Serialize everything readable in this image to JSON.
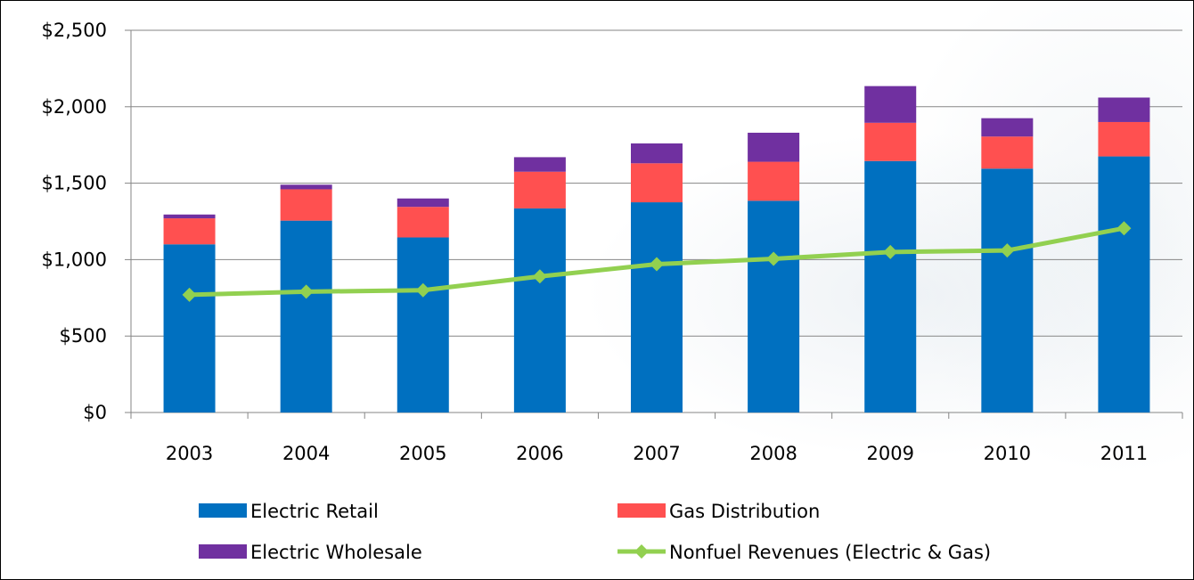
{
  "chart_data": {
    "type": "bar",
    "stacked": true,
    "categories": [
      "2003",
      "2004",
      "2005",
      "2006",
      "2007",
      "2008",
      "2009",
      "2010",
      "2011"
    ],
    "ylim": [
      0,
      2500
    ],
    "yticks": [
      0,
      500,
      1000,
      1500,
      2000,
      2500
    ],
    "ytick_labels": [
      "$0",
      "$500",
      "$1,000",
      "$1,500",
      "$2,000",
      "$2,500"
    ],
    "grid": true,
    "legend_position": "bottom",
    "title": "",
    "xlabel": "",
    "ylabel": "",
    "series": [
      {
        "name": "Electric Retail",
        "type": "bar",
        "color": "#0070C0",
        "values": [
          1100,
          1255,
          1145,
          1335,
          1375,
          1385,
          1645,
          1595,
          1675
        ]
      },
      {
        "name": "Gas Distribution",
        "type": "bar",
        "color": "#FF5050",
        "values": [
          170,
          205,
          200,
          240,
          255,
          255,
          250,
          210,
          225
        ]
      },
      {
        "name": "Electric Wholesale",
        "type": "bar",
        "color": "#7030A0",
        "values": [
          25,
          30,
          55,
          95,
          130,
          190,
          240,
          120,
          160
        ]
      },
      {
        "name": "Nonfuel Revenues (Electric & Gas)",
        "type": "line",
        "color": "#92D050",
        "values": [
          770,
          790,
          800,
          890,
          970,
          1005,
          1050,
          1060,
          1205
        ]
      }
    ]
  }
}
